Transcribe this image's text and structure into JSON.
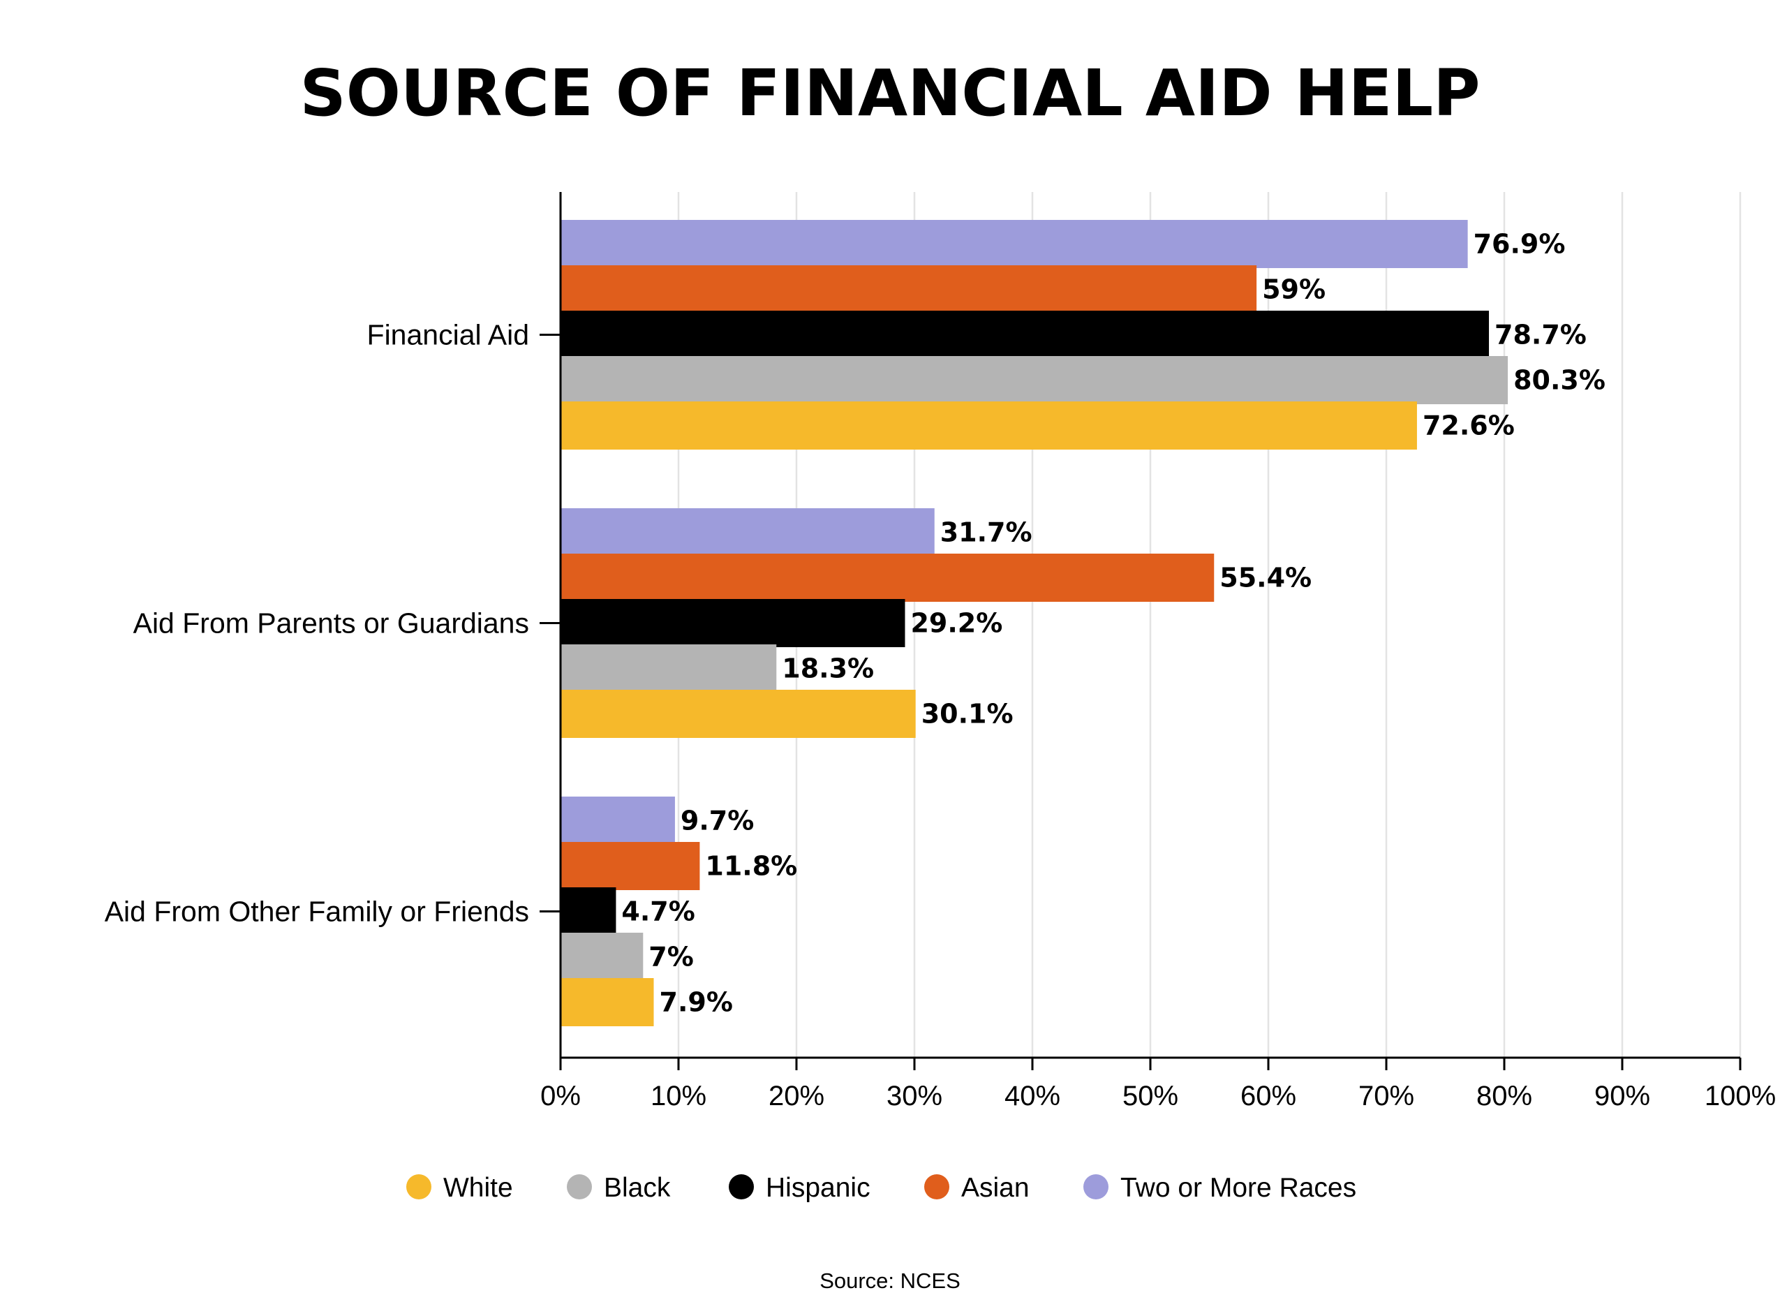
{
  "chart_data": {
    "type": "bar",
    "orientation": "horizontal",
    "title": "SOURCE OF FINANCIAL AID HELP",
    "source": "Source: NCES",
    "categories": [
      "Financial Aid",
      "Aid From Parents or Guardians",
      "Aid From Other Family or Friends"
    ],
    "series": [
      {
        "name": "Two or More Races",
        "color": "#9d9cdb",
        "values": [
          76.9,
          31.7,
          9.7
        ],
        "labels": [
          "76.9%",
          "31.7%",
          "9.7%"
        ]
      },
      {
        "name": "Asian",
        "color": "#e05e1c",
        "values": [
          59,
          55.4,
          11.8
        ],
        "labels": [
          "59%",
          "55.4%",
          "11.8%"
        ]
      },
      {
        "name": "Hispanic",
        "color": "#000000",
        "values": [
          78.7,
          29.2,
          4.7
        ],
        "labels": [
          "78.7%",
          "29.2%",
          "4.7%"
        ]
      },
      {
        "name": "Black",
        "color": "#b4b4b4",
        "values": [
          80.3,
          18.3,
          7
        ],
        "labels": [
          "80.3%",
          "18.3%",
          "7%"
        ]
      },
      {
        "name": "White",
        "color": "#f6b92b",
        "values": [
          72.6,
          30.1,
          7.9
        ],
        "labels": [
          "72.6%",
          "30.1%",
          "7.9%"
        ]
      }
    ],
    "legend_order": [
      "White",
      "Black",
      "Hispanic",
      "Asian",
      "Two or More Races"
    ],
    "x_ticks": [
      0,
      10,
      20,
      30,
      40,
      50,
      60,
      70,
      80,
      90,
      100
    ],
    "x_tick_labels": [
      "0%",
      "10%",
      "20%",
      "30%",
      "40%",
      "50%",
      "60%",
      "70%",
      "80%",
      "90%",
      "100%"
    ],
    "xlim": [
      0,
      100
    ],
    "xlabel": "",
    "ylabel": "",
    "grid": "vertical",
    "grid_color": "#e3e3e3",
    "legend_position": "bottom"
  }
}
